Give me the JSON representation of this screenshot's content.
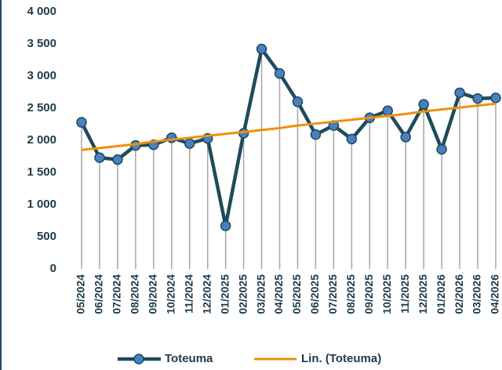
{
  "chart_data": {
    "type": "line",
    "categories": [
      "05/2024",
      "06/2024",
      "07/2024",
      "08/2024",
      "09/2024",
      "10/2024",
      "11/2024",
      "12/2024",
      "01/2025",
      "02/2025",
      "03/2025",
      "04/2025",
      "05/2025",
      "06/2025",
      "07/2025",
      "08/2025",
      "09/2025",
      "10/2025",
      "11/2025",
      "12/2025",
      "01/2026",
      "02/2026",
      "03/2026",
      "04/2026"
    ],
    "series": [
      {
        "name": "Toteuma",
        "color": "#1d4b5c",
        "marker_color": "#4a7fc1",
        "values": [
          2280,
          1730,
          1700,
          1920,
          1930,
          2040,
          1950,
          2030,
          670,
          2110,
          3420,
          3040,
          2600,
          2090,
          2230,
          2020,
          2350,
          2460,
          2050,
          2560,
          1860,
          2740,
          2650,
          2660
        ]
      },
      {
        "name": "Lin. (Toteuma)",
        "color": "#f0900c",
        "values": [
          1850,
          1880,
          1910,
          1940,
          1980,
          2010,
          2040,
          2070,
          2100,
          2130,
          2160,
          2190,
          2230,
          2260,
          2290,
          2320,
          2350,
          2380,
          2410,
          2450,
          2480,
          2510,
          2540,
          2570
        ]
      }
    ],
    "ylim": [
      0,
      4000
    ],
    "yticks": [
      0,
      500,
      {
        "value": 1000,
        "label": "1 000"
      },
      {
        "value": 1500,
        "label": "1 500"
      },
      {
        "value": 2000,
        "label": "2 000"
      },
      {
        "value": 2500,
        "label": "2 500"
      },
      {
        "value": 3000,
        "label": "3 000"
      },
      {
        "value": 3500,
        "label": "3 500"
      },
      {
        "value": 4000,
        "label": "4 000"
      }
    ],
    "drop_lines": true,
    "legend": "bottom"
  }
}
